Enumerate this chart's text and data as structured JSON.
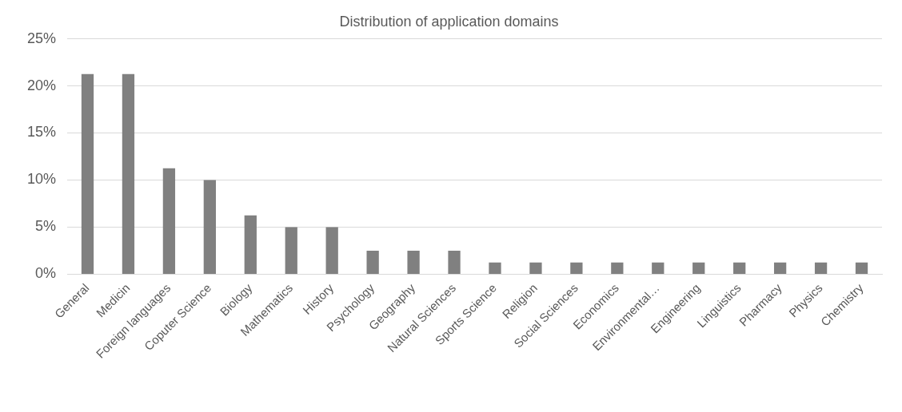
{
  "chart_data": {
    "type": "bar",
    "title": "Distribution of application domains",
    "categories": [
      "General",
      "Medicin",
      "Foreign languages",
      "Coputer Science",
      "Biology",
      "Mathematics",
      "History",
      "Psychology",
      "Geography",
      "Natural Sciences",
      "Sports Science",
      "Religion",
      "Social Sciences",
      "Economics",
      "Environmental…",
      "Engineering",
      "Linguistics",
      "Pharmacy",
      "Physics",
      "Chemistry"
    ],
    "values": [
      21.25,
      21.25,
      11.25,
      10,
      6.25,
      5,
      5,
      2.5,
      2.5,
      2.5,
      1.25,
      1.25,
      1.25,
      1.25,
      1.25,
      1.25,
      1.25,
      1.25,
      1.25,
      1.25
    ],
    "color": "#808080",
    "ylim": [
      0,
      25
    ],
    "yticks": [
      {
        "value": 0,
        "label": "0%"
      },
      {
        "value": 5,
        "label": "5%"
      },
      {
        "value": 10,
        "label": "10%"
      },
      {
        "value": 15,
        "label": "15%"
      },
      {
        "value": 20,
        "label": "20%"
      },
      {
        "value": 25,
        "label": "25%"
      }
    ],
    "grid": "y",
    "legend": false
  }
}
